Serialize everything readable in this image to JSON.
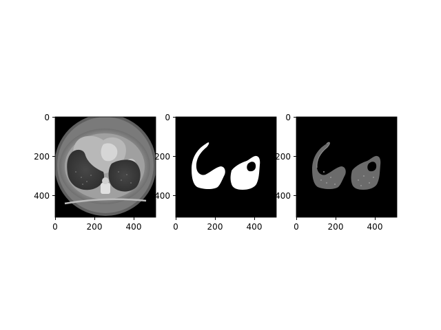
{
  "figure": {
    "panels": [
      {
        "name": "ct-slice",
        "image": "grayscale axial chest CT slice",
        "x_ticks": [
          "0",
          "200",
          "400"
        ],
        "y_ticks": [
          "0",
          "200",
          "400"
        ]
      },
      {
        "name": "lung-mask",
        "image": "binary lung segmentation mask (white on black)",
        "x_ticks": [
          "0",
          "200",
          "400"
        ],
        "y_ticks": [
          "0",
          "200",
          "400"
        ]
      },
      {
        "name": "masked-ct",
        "image": "CT slice with lung mask applied (gray lungs on black)",
        "x_ticks": [
          "0",
          "200",
          "400"
        ],
        "y_ticks": [
          "0",
          "200",
          "400"
        ]
      }
    ],
    "colors": {
      "background": "#ffffff",
      "image_black": "#000000",
      "mask_white": "#ffffff",
      "ct_body": "#8c8c8c",
      "ct_lung": "#3a3a3a",
      "masked_lung": "#6b6b6b"
    }
  }
}
